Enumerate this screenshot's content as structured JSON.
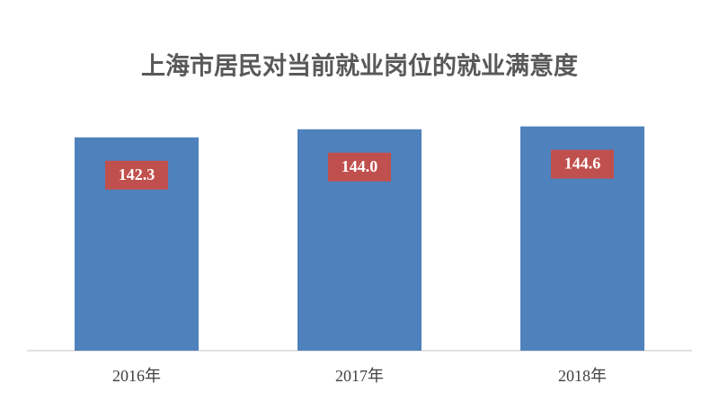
{
  "chart_data": {
    "type": "bar",
    "title": "上海市居民对当前就业岗位的就业满意度",
    "categories": [
      "2016年",
      "2017年",
      "2018年"
    ],
    "values": [
      142.3,
      144.0,
      144.6
    ],
    "value_labels": [
      "142.3",
      "144.0",
      "144.6"
    ],
    "color": "#4f81bd",
    "label_color": "#c0504d",
    "ylim": [
      97.5,
      150
    ],
    "grid": false
  }
}
